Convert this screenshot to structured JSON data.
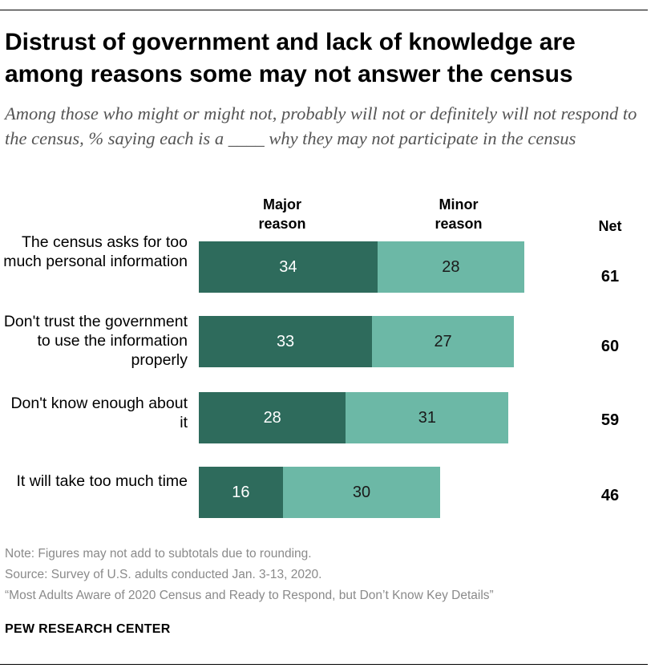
{
  "title": "Distrust of government and lack of knowledge are among reasons some may not answer the census",
  "subtitle": "Among those who might or might not, probably will not or definitely will not respond to the census, % saying each is a ____ why they may not participate in the census",
  "column_headers": {
    "major": "Major reason",
    "minor": "Minor reason",
    "net": "Net"
  },
  "colors": {
    "major": "#2e6b5c",
    "minor": "#6cb8a6"
  },
  "chart_data": {
    "type": "bar",
    "orientation": "horizontal",
    "stacked": true,
    "categories": [
      "The census asks for too much personal information",
      "Don't trust the government to use the information properly",
      "Don't know enough about it",
      "It will take too much time"
    ],
    "series": [
      {
        "name": "Major reason",
        "values": [
          34,
          33,
          28,
          16
        ]
      },
      {
        "name": "Minor reason",
        "values": [
          28,
          27,
          31,
          30
        ]
      }
    ],
    "net": [
      61,
      60,
      59,
      46
    ]
  },
  "footer": {
    "note": "Note: Figures may not add to subtotals due to rounding.",
    "source": "Source: Survey of U.S. adults conducted Jan. 3-13, 2020.",
    "report": "“Most Adults Aware of 2020 Census and Ready to Respond, but Don’t Know Key Details”",
    "brand": "PEW RESEARCH CENTER"
  }
}
